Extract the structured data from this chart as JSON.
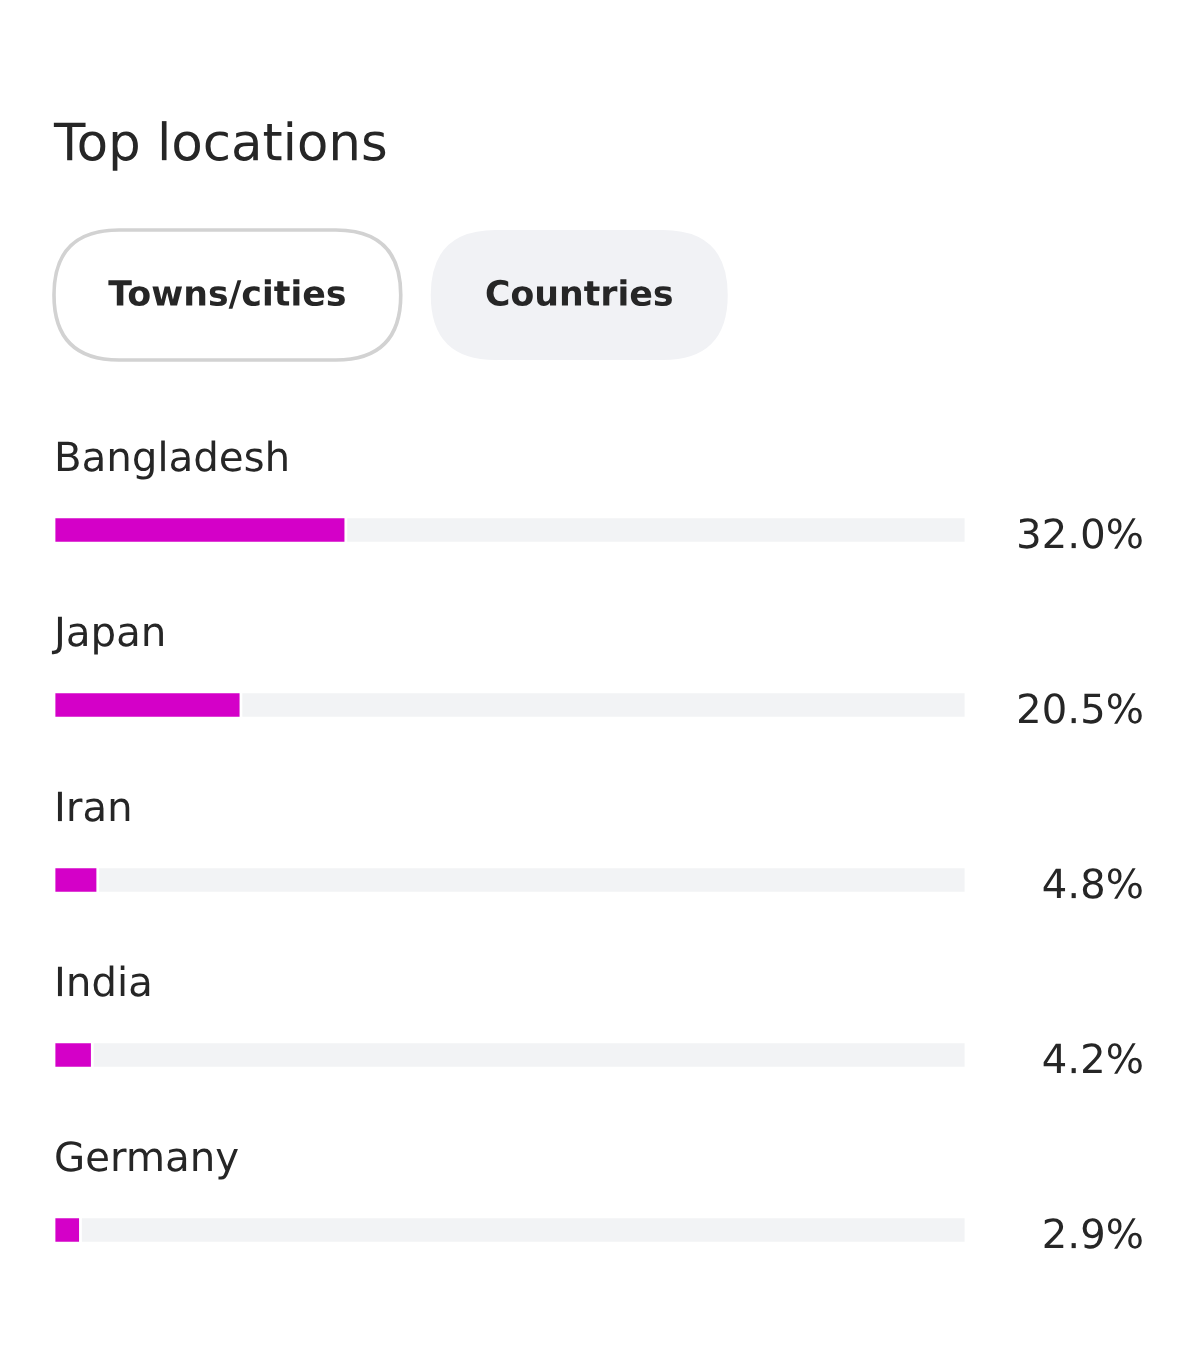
{
  "chart_data": {
    "type": "bar",
    "orientation": "horizontal",
    "title": "Top locations",
    "annotations": [
      "Towns/cities",
      "Countries"
    ],
    "categories": [
      "Bangladesh",
      "Japan",
      "Iran",
      "India",
      "Germany"
    ],
    "values": [
      32.0,
      20.5,
      4.8,
      4.2,
      2.9
    ],
    "color": "#d400c8",
    "value_labels": [
      "32.0%",
      "20.5%",
      "4.8%",
      "4.2%",
      "2.9%"
    ],
    "xlim": [
      0,
      100
    ],
    "tick_labels": false
  }
}
